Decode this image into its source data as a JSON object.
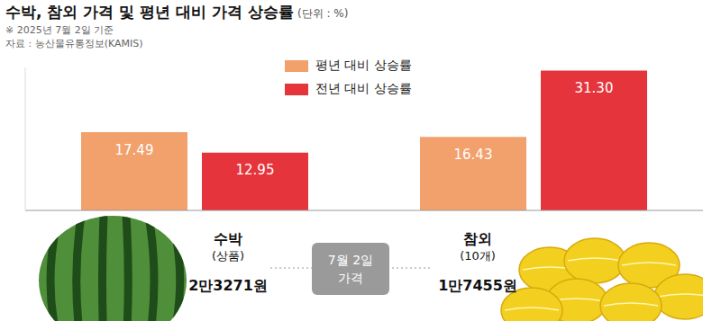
{
  "chart_data": {
    "type": "bar",
    "title": "수박, 참외 가격 및 평년 대비 가격 상승률",
    "subtitle": "(단위 : %)",
    "note": "※ 2025년 7월 2일 기준",
    "source": "자료 : 농산물유통정보(KAMIS)",
    "categories": [
      "수박",
      "참외"
    ],
    "series": [
      {
        "name": "평년 대비 상승률",
        "color": "#F2A06C",
        "values": [
          17.49,
          16.43
        ],
        "value_labels": [
          "17.49",
          "16.43"
        ]
      },
      {
        "name": "전년 대비 상승률",
        "color": "#E5343B",
        "values": [
          12.95,
          31.3
        ],
        "value_labels": [
          "12.95",
          "31.30"
        ]
      }
    ],
    "ylim": [
      0,
      32
    ],
    "tick_labels": false,
    "data_labels": true,
    "legend": "top",
    "annotations": {
      "items": [
        {
          "category": "수박",
          "sub": "(상품)",
          "price": "2만3271원"
        },
        {
          "category": "참외",
          "sub": "(10개)",
          "price": "1만7455원"
        }
      ],
      "center": [
        "7월 2일",
        "가격"
      ]
    }
  }
}
